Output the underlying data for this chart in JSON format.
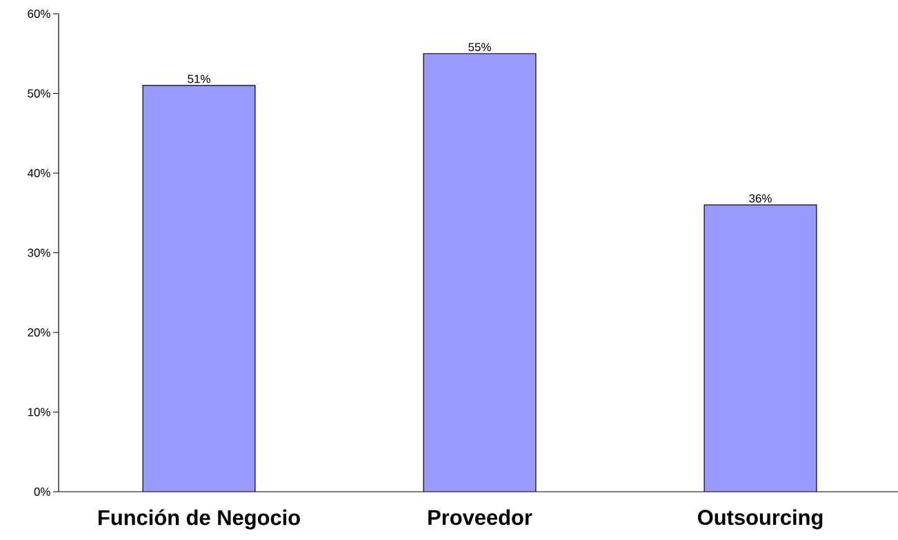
{
  "chart_data": {
    "type": "bar",
    "categories": [
      "Función de Negocio",
      "Proveedor",
      "Outsourcing"
    ],
    "values": [
      51,
      55,
      36
    ],
    "value_labels": [
      "51%",
      "55%",
      "36%"
    ],
    "color": "#9999ff",
    "ylim": [
      0,
      60
    ],
    "yticks": [
      {
        "value": 0,
        "label": "0%"
      },
      {
        "value": 10,
        "label": "10%"
      },
      {
        "value": 20,
        "label": "20%"
      },
      {
        "value": 30,
        "label": "30%"
      },
      {
        "value": 40,
        "label": "40%"
      },
      {
        "value": 50,
        "label": "50%"
      },
      {
        "value": 60,
        "label": "60%"
      }
    ],
    "grid": false
  }
}
